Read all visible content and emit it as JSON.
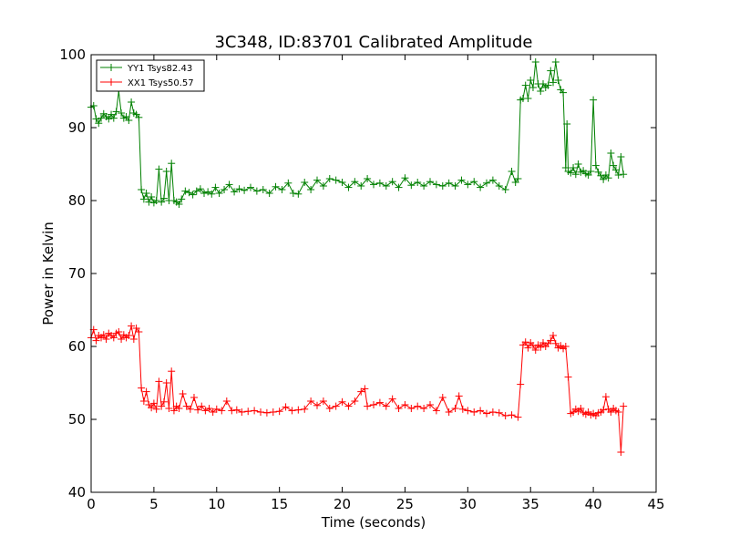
{
  "chart_data": {
    "type": "line",
    "title": "3C348, ID:83701 Calibrated Amplitude",
    "xlabel": "Time (seconds)",
    "ylabel": "Power in Kelvin",
    "xlim": [
      0,
      45
    ],
    "ylim": [
      40,
      100
    ],
    "xticks": [
      "0",
      "5",
      "10",
      "15",
      "20",
      "25",
      "30",
      "35",
      "40",
      "45"
    ],
    "yticks": [
      "40",
      "50",
      "60",
      "70",
      "80",
      "90",
      "100"
    ],
    "grid": false,
    "legend_position": "top-left",
    "marker": "+",
    "series": [
      {
        "name": "YY1 Tsys82.43",
        "color": "#008000",
        "points": [
          [
            0.0,
            92.8
          ],
          [
            0.2,
            93.0
          ],
          [
            0.4,
            91.2
          ],
          [
            0.6,
            90.6
          ],
          [
            0.8,
            91.3
          ],
          [
            1.0,
            91.9
          ],
          [
            1.2,
            91.5
          ],
          [
            1.4,
            91.2
          ],
          [
            1.6,
            91.8
          ],
          [
            1.8,
            91.3
          ],
          [
            2.0,
            92.2
          ],
          [
            2.2,
            95.0
          ],
          [
            2.4,
            92.0
          ],
          [
            2.6,
            91.3
          ],
          [
            2.8,
            91.5
          ],
          [
            3.0,
            91.0
          ],
          [
            3.2,
            93.5
          ],
          [
            3.4,
            92.0
          ],
          [
            3.6,
            91.8
          ],
          [
            3.8,
            91.4
          ],
          [
            4.0,
            81.5
          ],
          [
            4.2,
            80.2
          ],
          [
            4.4,
            81.0
          ],
          [
            4.6,
            79.8
          ],
          [
            4.8,
            80.5
          ],
          [
            5.0,
            79.7
          ],
          [
            5.2,
            80.0
          ],
          [
            5.4,
            84.3
          ],
          [
            5.6,
            79.8
          ],
          [
            5.8,
            80.3
          ],
          [
            6.0,
            84.0
          ],
          [
            6.2,
            80.0
          ],
          [
            6.4,
            85.1
          ],
          [
            6.6,
            80.0
          ],
          [
            6.8,
            79.8
          ],
          [
            7.0,
            79.5
          ],
          [
            7.2,
            80.2
          ],
          [
            7.5,
            81.3
          ],
          [
            7.8,
            81.1
          ],
          [
            8.1,
            80.8
          ],
          [
            8.4,
            81.3
          ],
          [
            8.7,
            81.6
          ],
          [
            9.0,
            81.0
          ],
          [
            9.3,
            81.2
          ],
          [
            9.6,
            80.9
          ],
          [
            9.9,
            81.8
          ],
          [
            10.2,
            81.0
          ],
          [
            10.6,
            81.5
          ],
          [
            11.0,
            82.2
          ],
          [
            11.4,
            81.2
          ],
          [
            11.8,
            81.6
          ],
          [
            12.2,
            81.4
          ],
          [
            12.7,
            81.8
          ],
          [
            13.2,
            81.3
          ],
          [
            13.7,
            81.5
          ],
          [
            14.2,
            81.0
          ],
          [
            14.7,
            81.9
          ],
          [
            15.2,
            81.5
          ],
          [
            15.7,
            82.4
          ],
          [
            16.1,
            81.0
          ],
          [
            16.5,
            80.9
          ],
          [
            17.0,
            82.5
          ],
          [
            17.5,
            81.5
          ],
          [
            18.0,
            82.8
          ],
          [
            18.5,
            82.0
          ],
          [
            19.0,
            83.0
          ],
          [
            19.5,
            82.8
          ],
          [
            20.0,
            82.5
          ],
          [
            20.5,
            81.8
          ],
          [
            21.0,
            82.6
          ],
          [
            21.5,
            82.0
          ],
          [
            22.0,
            83.0
          ],
          [
            22.5,
            82.2
          ],
          [
            23.0,
            82.4
          ],
          [
            23.5,
            82.0
          ],
          [
            24.0,
            82.6
          ],
          [
            24.5,
            81.8
          ],
          [
            25.0,
            83.1
          ],
          [
            25.5,
            82.1
          ],
          [
            26.0,
            82.5
          ],
          [
            26.5,
            82.0
          ],
          [
            27.0,
            82.6
          ],
          [
            27.5,
            82.2
          ],
          [
            28.0,
            82.0
          ],
          [
            28.5,
            82.4
          ],
          [
            29.0,
            82.0
          ],
          [
            29.5,
            82.8
          ],
          [
            30.0,
            82.2
          ],
          [
            30.5,
            82.6
          ],
          [
            31.0,
            81.8
          ],
          [
            31.5,
            82.4
          ],
          [
            32.0,
            82.8
          ],
          [
            32.5,
            82.0
          ],
          [
            33.0,
            81.5
          ],
          [
            33.5,
            84.0
          ],
          [
            33.8,
            82.5
          ],
          [
            34.0,
            83.0
          ],
          [
            34.2,
            93.8
          ],
          [
            34.4,
            94.0
          ],
          [
            34.6,
            95.8
          ],
          [
            34.8,
            94.0
          ],
          [
            35.0,
            96.5
          ],
          [
            35.2,
            95.5
          ],
          [
            35.4,
            99.0
          ],
          [
            35.6,
            96.0
          ],
          [
            35.8,
            95.0
          ],
          [
            36.0,
            96.0
          ],
          [
            36.2,
            95.5
          ],
          [
            36.4,
            95.8
          ],
          [
            36.6,
            97.8
          ],
          [
            36.8,
            96.2
          ],
          [
            37.0,
            99.0
          ],
          [
            37.2,
            96.5
          ],
          [
            37.4,
            95.2
          ],
          [
            37.6,
            94.8
          ],
          [
            37.8,
            84.5
          ],
          [
            37.9,
            90.5
          ],
          [
            38.0,
            84.0
          ],
          [
            38.2,
            83.8
          ],
          [
            38.4,
            84.5
          ],
          [
            38.6,
            83.6
          ],
          [
            38.8,
            85.0
          ],
          [
            39.0,
            83.9
          ],
          [
            39.2,
            84.1
          ],
          [
            39.4,
            83.7
          ],
          [
            39.6,
            83.5
          ],
          [
            39.8,
            84.0
          ],
          [
            40.0,
            93.8
          ],
          [
            40.2,
            84.8
          ],
          [
            40.4,
            83.9
          ],
          [
            40.6,
            83.4
          ],
          [
            40.8,
            82.9
          ],
          [
            41.0,
            83.5
          ],
          [
            41.2,
            83.1
          ],
          [
            41.4,
            86.5
          ],
          [
            41.6,
            84.8
          ],
          [
            41.8,
            84.2
          ],
          [
            42.0,
            83.5
          ],
          [
            42.2,
            86.0
          ],
          [
            42.4,
            83.6
          ]
        ]
      },
      {
        "name": "XX1 Tsys50.57",
        "color": "#ff0000",
        "points": [
          [
            0.0,
            61.2
          ],
          [
            0.2,
            62.3
          ],
          [
            0.4,
            60.8
          ],
          [
            0.6,
            61.5
          ],
          [
            0.8,
            61.2
          ],
          [
            1.0,
            61.6
          ],
          [
            1.2,
            61.0
          ],
          [
            1.4,
            61.8
          ],
          [
            1.6,
            61.5
          ],
          [
            1.8,
            61.2
          ],
          [
            2.0,
            61.8
          ],
          [
            2.2,
            62.0
          ],
          [
            2.4,
            61.0
          ],
          [
            2.6,
            61.6
          ],
          [
            2.8,
            61.2
          ],
          [
            3.0,
            61.5
          ],
          [
            3.2,
            62.8
          ],
          [
            3.4,
            61.0
          ],
          [
            3.6,
            62.5
          ],
          [
            3.8,
            62.0
          ],
          [
            4.0,
            54.3
          ],
          [
            4.2,
            52.5
          ],
          [
            4.4,
            53.8
          ],
          [
            4.6,
            52.0
          ],
          [
            4.8,
            51.6
          ],
          [
            5.0,
            52.2
          ],
          [
            5.2,
            51.4
          ],
          [
            5.4,
            55.2
          ],
          [
            5.6,
            51.8
          ],
          [
            5.8,
            52.4
          ],
          [
            6.0,
            55.0
          ],
          [
            6.2,
            51.5
          ],
          [
            6.4,
            56.6
          ],
          [
            6.6,
            51.2
          ],
          [
            6.8,
            51.8
          ],
          [
            7.0,
            51.5
          ],
          [
            7.3,
            53.5
          ],
          [
            7.6,
            51.8
          ],
          [
            7.9,
            51.4
          ],
          [
            8.2,
            53.0
          ],
          [
            8.5,
            51.3
          ],
          [
            8.8,
            51.8
          ],
          [
            9.1,
            51.2
          ],
          [
            9.4,
            51.5
          ],
          [
            9.7,
            51.0
          ],
          [
            10.0,
            51.4
          ],
          [
            10.4,
            51.2
          ],
          [
            10.8,
            52.5
          ],
          [
            11.2,
            51.2
          ],
          [
            11.6,
            51.3
          ],
          [
            12.0,
            51.0
          ],
          [
            12.5,
            51.1
          ],
          [
            13.0,
            51.2
          ],
          [
            13.5,
            51.0
          ],
          [
            14.0,
            50.9
          ],
          [
            14.5,
            51.0
          ],
          [
            15.0,
            51.1
          ],
          [
            15.5,
            51.7
          ],
          [
            16.0,
            51.2
          ],
          [
            16.5,
            51.3
          ],
          [
            17.0,
            51.4
          ],
          [
            17.5,
            52.5
          ],
          [
            18.0,
            51.9
          ],
          [
            18.5,
            52.5
          ],
          [
            19.0,
            51.5
          ],
          [
            19.5,
            51.8
          ],
          [
            20.0,
            52.4
          ],
          [
            20.5,
            51.8
          ],
          [
            21.0,
            52.5
          ],
          [
            21.5,
            53.8
          ],
          [
            21.8,
            54.2
          ],
          [
            22.0,
            51.8
          ],
          [
            22.5,
            52.0
          ],
          [
            23.0,
            52.3
          ],
          [
            23.5,
            51.8
          ],
          [
            24.0,
            52.8
          ],
          [
            24.5,
            51.5
          ],
          [
            25.0,
            52.0
          ],
          [
            25.5,
            51.5
          ],
          [
            26.0,
            51.8
          ],
          [
            26.5,
            51.5
          ],
          [
            27.0,
            52.0
          ],
          [
            27.5,
            51.2
          ],
          [
            28.0,
            53.0
          ],
          [
            28.5,
            51.0
          ],
          [
            29.0,
            51.5
          ],
          [
            29.3,
            53.2
          ],
          [
            29.6,
            51.4
          ],
          [
            30.0,
            51.2
          ],
          [
            30.5,
            51.0
          ],
          [
            31.0,
            51.2
          ],
          [
            31.5,
            50.8
          ],
          [
            32.0,
            51.0
          ],
          [
            32.5,
            50.9
          ],
          [
            33.0,
            50.5
          ],
          [
            33.5,
            50.6
          ],
          [
            34.0,
            50.3
          ],
          [
            34.2,
            54.8
          ],
          [
            34.4,
            60.2
          ],
          [
            34.6,
            60.6
          ],
          [
            34.8,
            59.8
          ],
          [
            35.0,
            60.5
          ],
          [
            35.2,
            60.1
          ],
          [
            35.4,
            59.5
          ],
          [
            35.6,
            60.2
          ],
          [
            35.8,
            59.9
          ],
          [
            36.0,
            60.5
          ],
          [
            36.2,
            60.0
          ],
          [
            36.4,
            60.4
          ],
          [
            36.6,
            60.8
          ],
          [
            36.8,
            61.5
          ],
          [
            37.0,
            60.4
          ],
          [
            37.2,
            59.8
          ],
          [
            37.4,
            60.1
          ],
          [
            37.6,
            59.7
          ],
          [
            37.8,
            60.0
          ],
          [
            38.0,
            55.8
          ],
          [
            38.2,
            50.8
          ],
          [
            38.4,
            51.0
          ],
          [
            38.6,
            51.4
          ],
          [
            38.8,
            51.1
          ],
          [
            39.0,
            51.5
          ],
          [
            39.2,
            50.9
          ],
          [
            39.4,
            50.7
          ],
          [
            39.6,
            51.0
          ],
          [
            39.8,
            50.6
          ],
          [
            40.0,
            50.8
          ],
          [
            40.2,
            50.5
          ],
          [
            40.4,
            50.9
          ],
          [
            40.6,
            51.0
          ],
          [
            40.8,
            51.3
          ],
          [
            41.0,
            53.1
          ],
          [
            41.2,
            51.4
          ],
          [
            41.4,
            51.0
          ],
          [
            41.6,
            51.5
          ],
          [
            41.8,
            51.2
          ],
          [
            42.0,
            51.0
          ],
          [
            42.2,
            45.5
          ],
          [
            42.4,
            51.8
          ]
        ]
      }
    ]
  }
}
